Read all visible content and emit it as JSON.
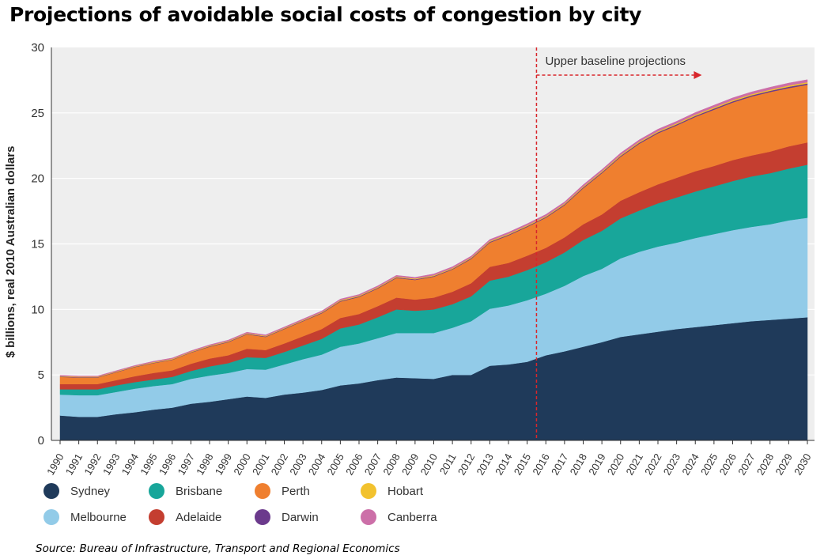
{
  "title": "Projections of avoidable social costs of congestion by city",
  "source": "Source: Bureau of Infrastructure, Transport and Regional Economics",
  "colors": {
    "plot_background": "#eeeeee",
    "grid": "#ffffff",
    "baseline_marker": "#d8262b"
  },
  "chart_data": {
    "type": "area",
    "stacked": true,
    "ylabel": "$ billions, real 2010 Australian dollars",
    "xlabel": "",
    "ylim": [
      0,
      30
    ],
    "yticks": [
      0,
      5,
      10,
      15,
      20,
      25,
      30
    ],
    "grid": true,
    "legend_position": "bottom",
    "x": [
      "1990",
      "1991",
      "1992",
      "1993",
      "1994",
      "1995",
      "1996",
      "1997",
      "1998",
      "1999",
      "2000",
      "2001",
      "2002",
      "2003",
      "2004",
      "2005",
      "2006",
      "2007",
      "2008",
      "2009",
      "2010",
      "2011",
      "2012",
      "2013",
      "2014",
      "2015",
      "2016",
      "2017",
      "2018",
      "2019",
      "2020",
      "2021",
      "2022",
      "2023",
      "2024",
      "2025",
      "2026",
      "2027",
      "2028",
      "2029",
      "2030"
    ],
    "annotation": {
      "text": "Upper baseline projections",
      "x": "2015.5"
    },
    "series": [
      {
        "name": "Sydney",
        "color": "#1f3a5a",
        "values": [
          1.9,
          1.8,
          1.8,
          2.0,
          2.15,
          2.35,
          2.5,
          2.8,
          2.95,
          3.15,
          3.35,
          3.25,
          3.5,
          3.65,
          3.85,
          4.2,
          4.35,
          4.6,
          4.8,
          4.75,
          4.7,
          5.0,
          5.0,
          5.7,
          5.8,
          6.0,
          6.5,
          6.8,
          7.15,
          7.5,
          7.9,
          8.1,
          8.3,
          8.5,
          8.65,
          8.8,
          8.95,
          9.1,
          9.2,
          9.3,
          9.4
        ]
      },
      {
        "name": "Melbourne",
        "color": "#92cbe8",
        "values": [
          1.6,
          1.65,
          1.65,
          1.7,
          1.8,
          1.8,
          1.8,
          1.9,
          2.0,
          2.0,
          2.1,
          2.15,
          2.3,
          2.55,
          2.7,
          2.95,
          3.05,
          3.2,
          3.4,
          3.45,
          3.5,
          3.6,
          4.1,
          4.35,
          4.5,
          4.7,
          4.7,
          5.0,
          5.4,
          5.6,
          6.0,
          6.3,
          6.5,
          6.6,
          6.8,
          6.95,
          7.1,
          7.2,
          7.3,
          7.5,
          7.6
        ]
      },
      {
        "name": "Brisbane",
        "color": "#18a69a",
        "values": [
          0.4,
          0.45,
          0.45,
          0.5,
          0.5,
          0.5,
          0.55,
          0.6,
          0.7,
          0.75,
          0.9,
          0.9,
          0.95,
          1.05,
          1.2,
          1.4,
          1.45,
          1.6,
          1.8,
          1.7,
          1.8,
          1.8,
          1.9,
          2.15,
          2.2,
          2.3,
          2.4,
          2.55,
          2.75,
          2.9,
          3.05,
          3.15,
          3.3,
          3.45,
          3.55,
          3.65,
          3.75,
          3.85,
          3.9,
          3.95,
          4.05
        ]
      },
      {
        "name": "Adelaide",
        "color": "#c43e30",
        "values": [
          0.4,
          0.4,
          0.4,
          0.4,
          0.45,
          0.5,
          0.5,
          0.55,
          0.6,
          0.6,
          0.65,
          0.6,
          0.65,
          0.7,
          0.75,
          0.8,
          0.8,
          0.85,
          0.9,
          0.85,
          0.9,
          0.95,
          1.0,
          1.05,
          1.05,
          1.1,
          1.1,
          1.15,
          1.2,
          1.25,
          1.35,
          1.4,
          1.45,
          1.5,
          1.55,
          1.55,
          1.6,
          1.6,
          1.65,
          1.7,
          1.7
        ]
      },
      {
        "name": "Perth",
        "color": "#ef7f2f",
        "values": [
          0.55,
          0.5,
          0.5,
          0.6,
          0.7,
          0.75,
          0.8,
          0.85,
          0.9,
          1.0,
          1.1,
          1.0,
          1.1,
          1.15,
          1.2,
          1.25,
          1.3,
          1.35,
          1.5,
          1.5,
          1.6,
          1.7,
          1.85,
          1.85,
          2.1,
          2.2,
          2.3,
          2.45,
          2.75,
          3.15,
          3.35,
          3.7,
          3.9,
          4.0,
          4.15,
          4.3,
          4.4,
          4.5,
          4.55,
          4.45,
          4.4
        ]
      },
      {
        "name": "Darwin",
        "color": "#6b3a8c",
        "values": [
          0.03,
          0.03,
          0.03,
          0.03,
          0.03,
          0.03,
          0.03,
          0.03,
          0.04,
          0.04,
          0.04,
          0.04,
          0.04,
          0.04,
          0.05,
          0.05,
          0.05,
          0.05,
          0.05,
          0.05,
          0.05,
          0.05,
          0.06,
          0.06,
          0.06,
          0.06,
          0.06,
          0.07,
          0.07,
          0.07,
          0.07,
          0.08,
          0.08,
          0.08,
          0.08,
          0.09,
          0.09,
          0.09,
          0.09,
          0.1,
          0.1
        ]
      },
      {
        "name": "Hobart",
        "color": "#f2c22e",
        "values": [
          0.04,
          0.04,
          0.04,
          0.04,
          0.04,
          0.05,
          0.05,
          0.05,
          0.05,
          0.05,
          0.05,
          0.05,
          0.05,
          0.05,
          0.05,
          0.06,
          0.06,
          0.06,
          0.06,
          0.06,
          0.06,
          0.06,
          0.06,
          0.07,
          0.07,
          0.07,
          0.07,
          0.07,
          0.07,
          0.08,
          0.08,
          0.08,
          0.08,
          0.08,
          0.09,
          0.09,
          0.09,
          0.09,
          0.09,
          0.1,
          0.1
        ]
      },
      {
        "name": "Canberra",
        "color": "#cc6fa8",
        "values": [
          0.05,
          0.05,
          0.05,
          0.05,
          0.05,
          0.06,
          0.06,
          0.06,
          0.06,
          0.07,
          0.07,
          0.07,
          0.07,
          0.08,
          0.08,
          0.08,
          0.08,
          0.09,
          0.09,
          0.09,
          0.1,
          0.1,
          0.1,
          0.11,
          0.11,
          0.11,
          0.12,
          0.12,
          0.13,
          0.13,
          0.14,
          0.14,
          0.15,
          0.15,
          0.16,
          0.16,
          0.17,
          0.17,
          0.18,
          0.18,
          0.19
        ]
      }
    ]
  }
}
